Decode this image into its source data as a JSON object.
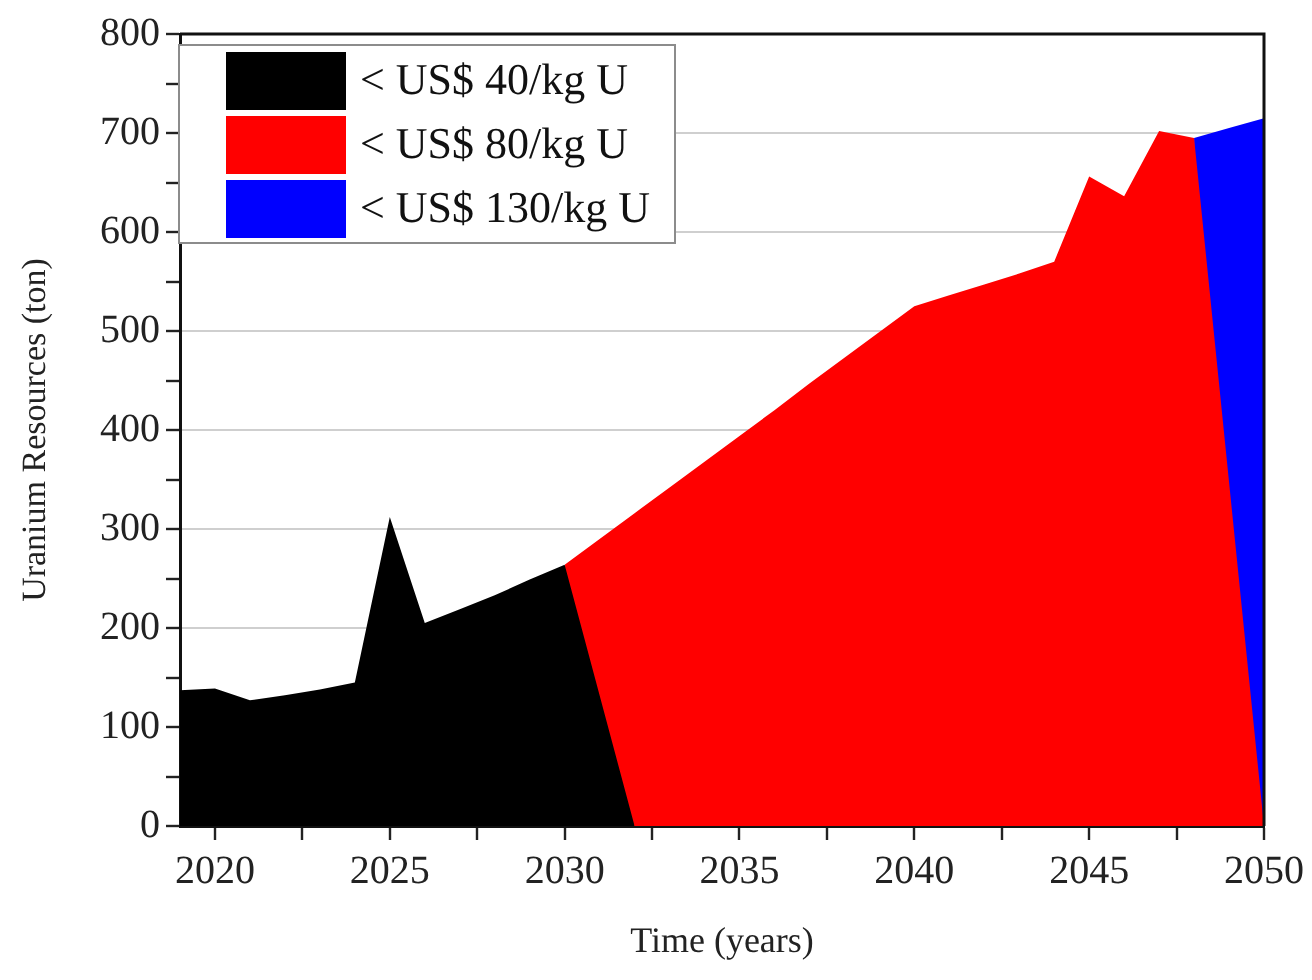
{
  "chart_data": {
    "type": "area",
    "xlabel": "Time (years)",
    "ylabel": "Uranium Resources (ton)",
    "xlim": [
      2019,
      2050
    ],
    "xticks": [
      2020,
      {
        "value": 2022.5,
        "label": null
      },
      2025,
      {
        "value": 2027.5,
        "label": null
      },
      2030,
      {
        "value": 2032.5,
        "label": null
      },
      2035,
      {
        "value": 2037.5,
        "label": null
      },
      2040,
      {
        "value": 2042.5,
        "label": null
      },
      2045,
      {
        "value": 2047.5,
        "label": null
      },
      2050
    ],
    "ylim": [
      0,
      800
    ],
    "yticks": [
      0,
      {
        "value": 50,
        "label": null
      },
      100,
      {
        "value": 150,
        "label": null
      },
      200,
      {
        "value": 250,
        "label": null
      },
      300,
      {
        "value": 350,
        "label": null
      },
      400,
      {
        "value": 450,
        "label": null
      },
      500,
      {
        "value": 550,
        "label": null
      },
      600,
      {
        "value": 650,
        "label": null
      },
      700,
      {
        "value": 750,
        "label": null
      },
      800
    ],
    "grid": "y",
    "legend": "top left",
    "series": [
      {
        "name": "< US$ 40/kg U",
        "color": "#000000",
        "x": [
          2019,
          2020,
          2021,
          2022,
          2023,
          2024,
          2025,
          2026,
          2027,
          2028,
          2029,
          2030,
          2032
        ],
        "values": [
          137,
          139,
          127,
          132,
          138,
          145,
          312,
          205,
          219,
          233,
          249,
          264,
          0
        ]
      },
      {
        "name": "< US$ 80/kg U",
        "color": "#ff0000",
        "x": [
          2030,
          2031,
          2032,
          2033,
          2034,
          2035,
          2036,
          2037,
          2038,
          2039,
          2040,
          2041,
          2042,
          2043,
          2044,
          2045,
          2046,
          2047,
          2048,
          2050
        ],
        "values": [
          264,
          290,
          316,
          342,
          368,
          394,
          420,
          447,
          473,
          499,
          525,
          536,
          547,
          558,
          570,
          656,
          636,
          702,
          695,
          0
        ]
      },
      {
        "name": "< US$ 130/kg U",
        "color": "#0000ff",
        "x": [
          2048,
          2049,
          2050
        ],
        "values": [
          695,
          705,
          715
        ]
      }
    ]
  }
}
